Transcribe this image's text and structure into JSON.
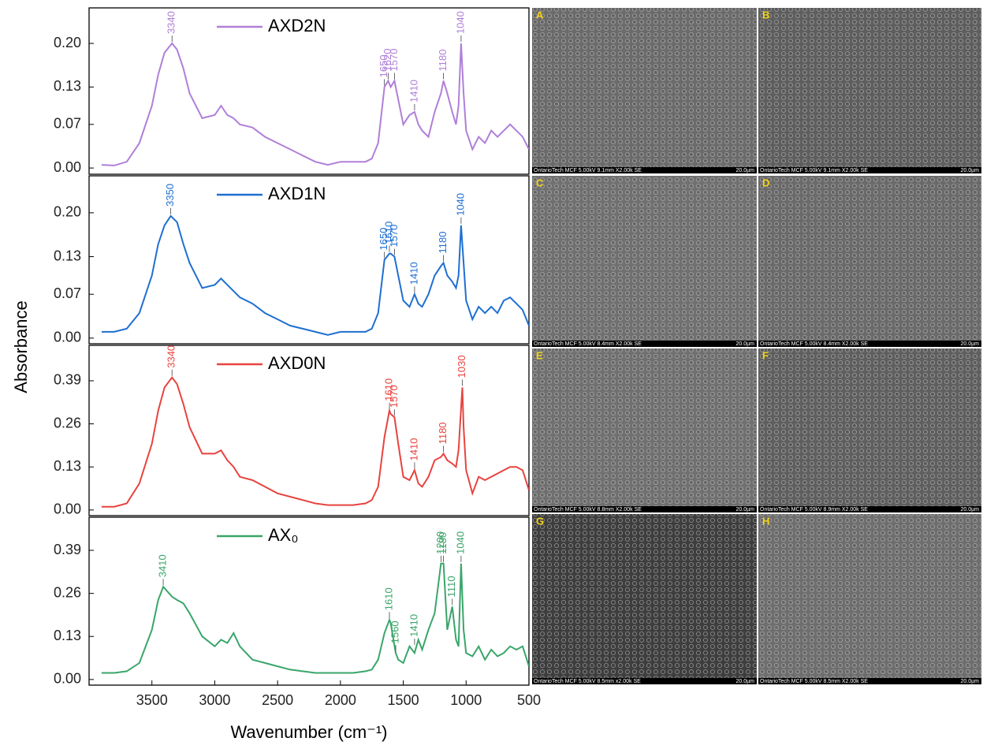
{
  "figure": {
    "ylabel": "Absorbance",
    "xlabel": "Wavenumber (cm⁻¹)"
  },
  "chart_data": [
    {
      "type": "line",
      "xlim": [
        4000,
        500
      ],
      "ylim": [
        -0.01,
        0.257
      ],
      "yticks": [
        {
          "value": 0,
          "label": "0.00"
        },
        0.07,
        0.13,
        {
          "value": 0.2,
          "label": "0.20"
        }
      ],
      "x": [
        3900,
        3800,
        3700,
        3600,
        3500,
        3450,
        3400,
        3340,
        3300,
        3250,
        3200,
        3100,
        3000,
        2950,
        2900,
        2850,
        2800,
        2700,
        2600,
        2500,
        2400,
        2300,
        2200,
        2100,
        2000,
        1900,
        1800,
        1750,
        1700,
        1650,
        1620,
        1600,
        1570,
        1540,
        1500,
        1450,
        1410,
        1380,
        1350,
        1300,
        1250,
        1200,
        1180,
        1150,
        1110,
        1080,
        1060,
        1040,
        1020,
        1000,
        950,
        900,
        850,
        800,
        750,
        700,
        650,
        600,
        550,
        500
      ],
      "series": [
        {
          "name": "AXD2N",
          "color": "#b07fd8",
          "values": [
            0.005,
            0.004,
            0.01,
            0.04,
            0.1,
            0.15,
            0.185,
            0.2,
            0.19,
            0.16,
            0.12,
            0.08,
            0.085,
            0.1,
            0.085,
            0.08,
            0.07,
            0.065,
            0.05,
            0.04,
            0.03,
            0.02,
            0.01,
            0.005,
            0.01,
            0.01,
            0.01,
            0.015,
            0.04,
            0.13,
            0.14,
            0.13,
            0.14,
            0.11,
            0.07,
            0.085,
            0.09,
            0.07,
            0.06,
            0.05,
            0.09,
            0.12,
            0.14,
            0.12,
            0.09,
            0.07,
            0.1,
            0.2,
            0.12,
            0.06,
            0.03,
            0.05,
            0.04,
            0.06,
            0.05,
            0.06,
            0.07,
            0.06,
            0.05,
            0.03
          ]
        }
      ],
      "annotations": [
        {
          "text": "3340",
          "x": 3340,
          "y": 0.2
        },
        {
          "text": "1650",
          "x": 1650,
          "y": 0.13
        },
        {
          "text": "1620",
          "x": 1620,
          "y": 0.14
        },
        {
          "text": "1570",
          "x": 1570,
          "y": 0.14
        },
        {
          "text": "1410",
          "x": 1410,
          "y": 0.09
        },
        {
          "text": "1180",
          "x": 1180,
          "y": 0.14
        },
        {
          "text": "1040",
          "x": 1040,
          "y": 0.2
        }
      ]
    },
    {
      "type": "line",
      "xlim": [
        4000,
        500
      ],
      "ylim": [
        -0.009,
        0.259
      ],
      "yticks": [
        {
          "value": 0,
          "label": "0.00"
        },
        0.07,
        0.13,
        {
          "value": 0.2,
          "label": "0.20"
        }
      ],
      "x": [
        3900,
        3800,
        3700,
        3600,
        3500,
        3450,
        3400,
        3350,
        3300,
        3250,
        3200,
        3100,
        3000,
        2950,
        2900,
        2850,
        2800,
        2700,
        2600,
        2500,
        2400,
        2300,
        2200,
        2100,
        2000,
        1900,
        1800,
        1750,
        1700,
        1650,
        1610,
        1600,
        1570,
        1540,
        1500,
        1450,
        1410,
        1380,
        1350,
        1300,
        1250,
        1200,
        1180,
        1150,
        1110,
        1080,
        1060,
        1040,
        1020,
        1000,
        950,
        900,
        850,
        800,
        750,
        700,
        650,
        600,
        550,
        500
      ],
      "series": [
        {
          "name": "AXD1N",
          "color": "#1f6fd1",
          "values": [
            0.01,
            0.01,
            0.015,
            0.04,
            0.1,
            0.15,
            0.18,
            0.195,
            0.185,
            0.15,
            0.12,
            0.08,
            0.085,
            0.095,
            0.085,
            0.075,
            0.065,
            0.055,
            0.04,
            0.03,
            0.02,
            0.015,
            0.01,
            0.005,
            0.01,
            0.01,
            0.01,
            0.015,
            0.04,
            0.125,
            0.135,
            0.135,
            0.13,
            0.1,
            0.06,
            0.05,
            0.07,
            0.055,
            0.05,
            0.07,
            0.1,
            0.115,
            0.12,
            0.1,
            0.09,
            0.08,
            0.1,
            0.18,
            0.12,
            0.06,
            0.03,
            0.05,
            0.04,
            0.05,
            0.04,
            0.06,
            0.065,
            0.055,
            0.045,
            0.02
          ]
        }
      ],
      "annotations": [
        {
          "text": "3350",
          "x": 3350,
          "y": 0.195
        },
        {
          "text": "1650",
          "x": 1650,
          "y": 0.125
        },
        {
          "text": "1610",
          "x": 1610,
          "y": 0.135
        },
        {
          "text": "1570",
          "x": 1570,
          "y": 0.13
        },
        {
          "text": "1410",
          "x": 1410,
          "y": 0.07
        },
        {
          "text": "1180",
          "x": 1180,
          "y": 0.12
        },
        {
          "text": "1040",
          "x": 1040,
          "y": 0.18
        }
      ]
    },
    {
      "type": "line",
      "xlim": [
        4000,
        500
      ],
      "ylim": [
        -0.017,
        0.497
      ],
      "yticks": [
        {
          "value": 0,
          "label": "0.00"
        },
        0.13,
        0.26,
        0.39
      ],
      "x": [
        3900,
        3800,
        3700,
        3600,
        3500,
        3450,
        3400,
        3340,
        3300,
        3250,
        3200,
        3100,
        3000,
        2950,
        2900,
        2850,
        2800,
        2700,
        2600,
        2500,
        2400,
        2300,
        2200,
        2100,
        2000,
        1900,
        1800,
        1750,
        1700,
        1650,
        1610,
        1600,
        1570,
        1540,
        1500,
        1450,
        1410,
        1380,
        1350,
        1300,
        1250,
        1200,
        1180,
        1150,
        1110,
        1080,
        1060,
        1030,
        1020,
        1000,
        950,
        900,
        850,
        800,
        750,
        700,
        650,
        600,
        550,
        500
      ],
      "series": [
        {
          "name": "AXD0N",
          "color": "#e8433f",
          "values": [
            0.01,
            0.01,
            0.02,
            0.08,
            0.2,
            0.3,
            0.37,
            0.4,
            0.38,
            0.32,
            0.25,
            0.17,
            0.17,
            0.18,
            0.15,
            0.13,
            0.1,
            0.09,
            0.07,
            0.05,
            0.04,
            0.03,
            0.02,
            0.015,
            0.015,
            0.015,
            0.02,
            0.03,
            0.07,
            0.22,
            0.3,
            0.29,
            0.28,
            0.2,
            0.1,
            0.09,
            0.12,
            0.08,
            0.07,
            0.1,
            0.15,
            0.16,
            0.17,
            0.15,
            0.14,
            0.13,
            0.18,
            0.37,
            0.25,
            0.12,
            0.05,
            0.1,
            0.09,
            0.1,
            0.11,
            0.12,
            0.13,
            0.13,
            0.12,
            0.06
          ]
        }
      ],
      "annotations": [
        {
          "text": "3340",
          "x": 3340,
          "y": 0.4
        },
        {
          "text": "1610",
          "x": 1610,
          "y": 0.3
        },
        {
          "text": "1570",
          "x": 1570,
          "y": 0.28
        },
        {
          "text": "1410",
          "x": 1410,
          "y": 0.12
        },
        {
          "text": "1180",
          "x": 1180,
          "y": 0.17
        },
        {
          "text": "1030",
          "x": 1030,
          "y": 0.37
        }
      ]
    },
    {
      "type": "line",
      "xlim": [
        4000,
        500
      ],
      "ylim": [
        -0.017,
        0.49
      ],
      "yticks": [
        {
          "value": 0,
          "label": "0.00"
        },
        0.13,
        0.26,
        0.39
      ],
      "xticks": [
        3500,
        3000,
        2500,
        2000,
        1500,
        1000,
        500
      ],
      "x": [
        3900,
        3800,
        3700,
        3600,
        3500,
        3450,
        3410,
        3340,
        3300,
        3250,
        3200,
        3100,
        3000,
        2950,
        2900,
        2850,
        2800,
        2700,
        2600,
        2500,
        2400,
        2300,
        2200,
        2100,
        2000,
        1900,
        1800,
        1750,
        1700,
        1650,
        1610,
        1600,
        1560,
        1540,
        1500,
        1450,
        1410,
        1380,
        1350,
        1300,
        1250,
        1200,
        1180,
        1150,
        1110,
        1080,
        1060,
        1040,
        1020,
        1000,
        950,
        900,
        850,
        800,
        750,
        700,
        650,
        600,
        550,
        500
      ],
      "series": [
        {
          "name": "AX₀",
          "color": "#3aa56a",
          "values": [
            0.02,
            0.02,
            0.025,
            0.05,
            0.15,
            0.24,
            0.28,
            0.25,
            0.24,
            0.23,
            0.2,
            0.13,
            0.1,
            0.12,
            0.11,
            0.14,
            0.1,
            0.06,
            0.05,
            0.04,
            0.03,
            0.025,
            0.02,
            0.02,
            0.02,
            0.02,
            0.025,
            0.03,
            0.06,
            0.14,
            0.18,
            0.17,
            0.08,
            0.06,
            0.05,
            0.1,
            0.08,
            0.12,
            0.09,
            0.15,
            0.2,
            0.35,
            0.35,
            0.15,
            0.22,
            0.12,
            0.1,
            0.35,
            0.15,
            0.08,
            0.07,
            0.1,
            0.06,
            0.09,
            0.07,
            0.08,
            0.1,
            0.09,
            0.1,
            0.04
          ]
        }
      ],
      "annotations": [
        {
          "text": "3410",
          "x": 3410,
          "y": 0.28
        },
        {
          "text": "1610",
          "x": 1610,
          "y": 0.18
        },
        {
          "text": "1560",
          "x": 1560,
          "y": 0.08
        },
        {
          "text": "1410",
          "x": 1410,
          "y": 0.1
        },
        {
          "text": "1200",
          "x": 1200,
          "y": 0.35
        },
        {
          "text": "1180",
          "x": 1180,
          "y": 0.35
        },
        {
          "text": "1110",
          "x": 1110,
          "y": 0.22
        },
        {
          "text": "1040",
          "x": 1040,
          "y": 0.35
        }
      ]
    }
  ],
  "sem_images": [
    {
      "label": "A",
      "caption": "OntarioTech MCF 5.00kV 9.1mm X2.00k SE",
      "scale": "20.0µm"
    },
    {
      "label": "B",
      "caption": "OntarioTech MCF 5.00kV 9.1mm X2.00k SE",
      "scale": "20.0µm"
    },
    {
      "label": "C",
      "caption": "OntarioTech MCF 5.00kV 8.4mm X2.00k SE",
      "scale": "20.0µm"
    },
    {
      "label": "D",
      "caption": "OntarioTech MCF 5.00kV 8.4mm X2.00k SE",
      "scale": "20.0µm"
    },
    {
      "label": "E",
      "caption": "OntarioTech MCF 5.00kV 8.8mm X2.00k SE",
      "scale": "20.0µm"
    },
    {
      "label": "F",
      "caption": "OntarioTech MCF 5.00kV 8.9mm X2.00k SE",
      "scale": "20.0µm"
    },
    {
      "label": "G",
      "caption": "OntarioTech MCF 5.00kV 8.5mm x2.00k SE",
      "scale": "20.0µm"
    },
    {
      "label": "H",
      "caption": "OntarioTech MCF 5.00kV 8.5mm X2.00k SE",
      "scale": "20.0µm"
    }
  ]
}
